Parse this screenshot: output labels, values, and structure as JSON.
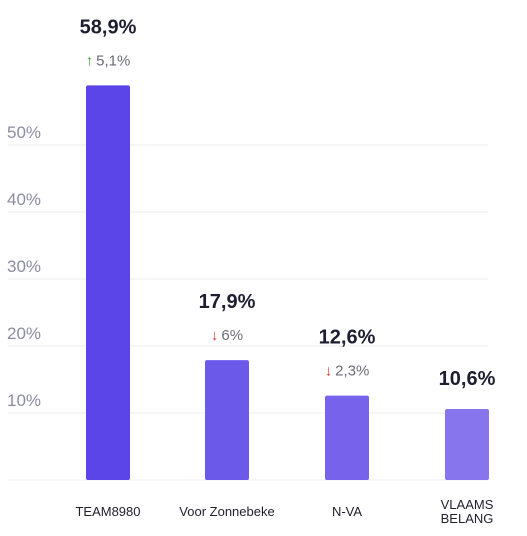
{
  "chart_data": {
    "type": "bar",
    "categories": [
      "TEAM8980",
      "Voor Zonnebeke",
      "N-VA",
      "VLAAMS BELANG"
    ],
    "category_lines": [
      [
        "TEAM8980"
      ],
      [
        "Voor Zonnebeke"
      ],
      [
        "N-VA"
      ],
      [
        "VLAAMS",
        "BELANG"
      ]
    ],
    "values": [
      58.9,
      17.9,
      12.6,
      10.6
    ],
    "value_labels": [
      "58,9%",
      "17,9%",
      "12,6%",
      "10,6%"
    ],
    "changes": [
      {
        "direction": "up",
        "text": "5,1%"
      },
      {
        "direction": "down",
        "text": "6%"
      },
      {
        "direction": "down",
        "text": "2,3%"
      },
      null
    ],
    "yticks": [
      10,
      20,
      30,
      40,
      50
    ],
    "ytick_labels": [
      "10%",
      "20%",
      "30%",
      "40%",
      "50%"
    ],
    "ylim": [
      0,
      60
    ],
    "grid": true,
    "bar_colors": [
      "#5b45e8",
      "#6b5ae9",
      "#7763eb",
      "#8775ee"
    ],
    "change_colors": {
      "up": "#3f9a3a",
      "down": "#d63a3a"
    },
    "arrow_icons": {
      "up": "arrow-up-icon",
      "down": "arrow-down-icon"
    }
  }
}
